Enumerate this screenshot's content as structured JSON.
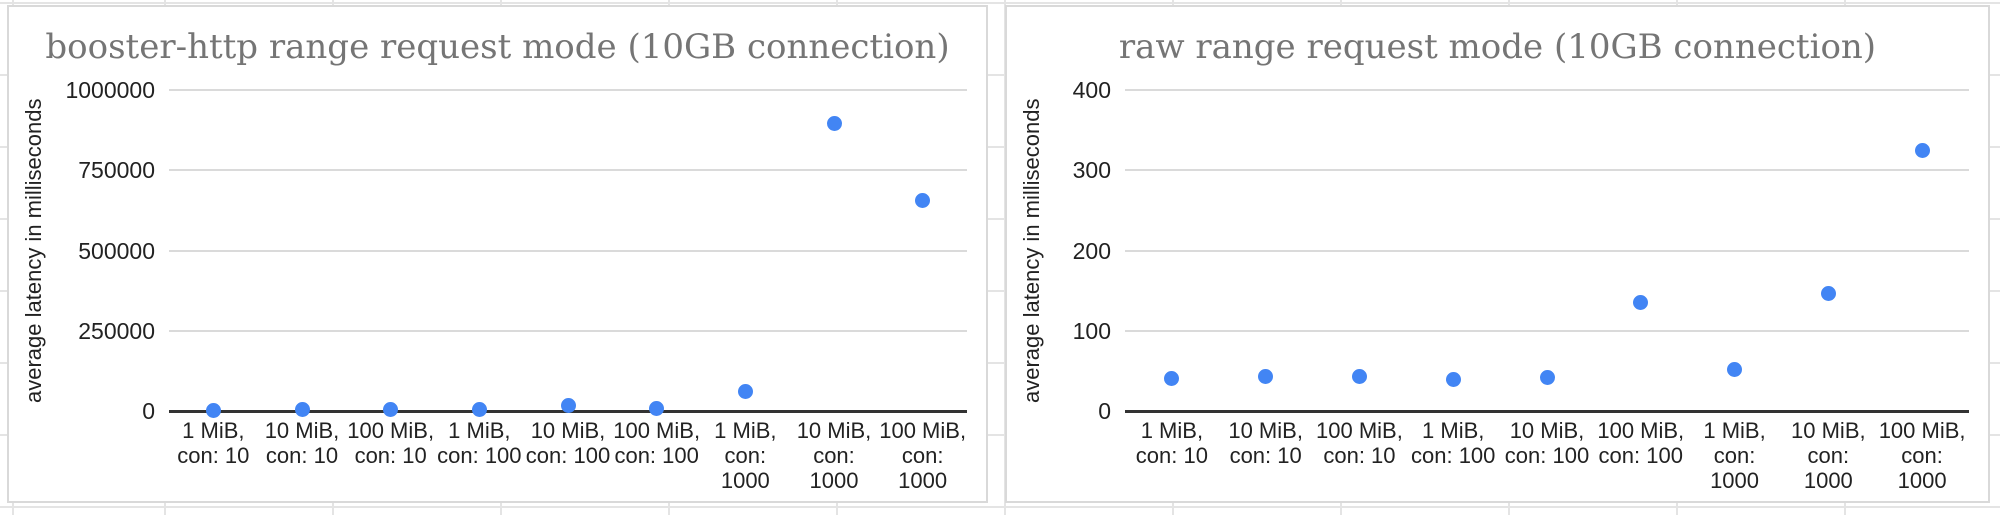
{
  "colors": {
    "point": "#4285f4",
    "chart_title": "#757575",
    "axis_text": "#222222",
    "gridline": "#dadada",
    "baseline": "#333333",
    "card_border": "#d9d9d9",
    "sheet_gridline": "#e4e4e4"
  },
  "chart_data": [
    {
      "type": "scatter",
      "title": "booster-http range request mode (10GB connection)",
      "xlabel": "",
      "ylabel": "average latency in milliseconds",
      "categories": [
        "1 MiB, con: 10",
        "10 MiB, con: 10",
        "100 MiB, con: 10",
        "1 MiB, con: 100",
        "10 MiB, con: 100",
        "100 MiB, con: 100",
        "1 MiB, con: 1000",
        "10 MiB, con: 1000",
        "100 MiB, con: 1000"
      ],
      "category_lines": [
        [
          "1 MiB,",
          "con: 10"
        ],
        [
          "10 MiB,",
          "con: 10"
        ],
        [
          "100 MiB,",
          "con: 10"
        ],
        [
          "1 MiB,",
          "con: 100"
        ],
        [
          "10 MiB,",
          "con: 100"
        ],
        [
          "100 MiB,",
          "con: 100"
        ],
        [
          "1 MiB,",
          "con:",
          "1000"
        ],
        [
          "10 MiB,",
          "con:",
          "1000"
        ],
        [
          "100 MiB,",
          "con:",
          "1000"
        ]
      ],
      "values": [
        3000,
        6000,
        6000,
        5000,
        18000,
        8000,
        62000,
        895000,
        655000
      ],
      "ylim": [
        0,
        1000000
      ],
      "yticks": [
        0,
        250000,
        500000,
        750000,
        1000000
      ],
      "grid": true,
      "legend": "none",
      "point_color": "#4285f4"
    },
    {
      "type": "scatter",
      "title": "raw range request mode (10GB connection)",
      "xlabel": "",
      "ylabel": "average latency in milliseconds",
      "categories": [
        "1 MiB, con: 10",
        "10 MiB, con: 10",
        "100 MiB, con: 10",
        "1 MiB, con: 100",
        "10 MiB, con: 100",
        "100 MiB, con: 100",
        "1 MiB, con: 1000",
        "10 MiB, con: 1000",
        "100 MiB, con: 1000"
      ],
      "category_lines": [
        [
          "1 MiB,",
          "con: 10"
        ],
        [
          "10 MiB,",
          "con: 10"
        ],
        [
          "100 MiB,",
          "con: 10"
        ],
        [
          "1 MiB,",
          "con: 100"
        ],
        [
          "10 MiB,",
          "con: 100"
        ],
        [
          "100 MiB,",
          "con: 100"
        ],
        [
          "1 MiB,",
          "con:",
          "1000"
        ],
        [
          "10 MiB,",
          "con:",
          "1000"
        ],
        [
          "100 MiB,",
          "con:",
          "1000"
        ]
      ],
      "values": [
        40,
        43,
        43,
        39,
        42,
        135,
        52,
        146,
        325
      ],
      "ylim": [
        0,
        400
      ],
      "yticks": [
        0,
        100,
        200,
        300,
        400
      ],
      "grid": true,
      "legend": "none",
      "point_color": "#4285f4"
    }
  ]
}
